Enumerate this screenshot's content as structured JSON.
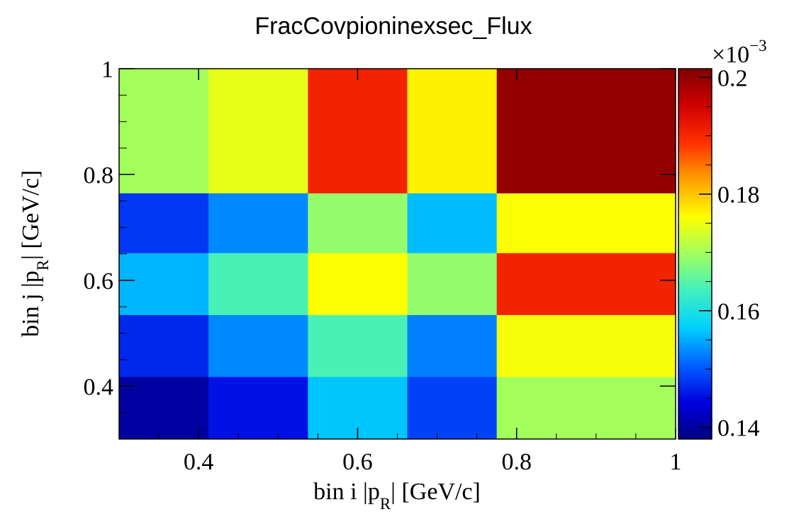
{
  "chart_data": {
    "type": "heatmap",
    "title": "FracCovpioninexsec_Flux",
    "xlabel": {
      "prefix": "bin i |",
      "vec": "p",
      "sub": "R",
      "suffix": "| [GeV/c]"
    },
    "ylabel": {
      "prefix": "bin j |",
      "vec": "p",
      "sub": "R",
      "suffix": "| [GeV/c]"
    },
    "xlim": [
      0.3,
      1.0
    ],
    "ylim": [
      0.3,
      1.0
    ],
    "x_ticks": [
      0.4,
      0.6,
      0.8,
      1
    ],
    "x_tick_labels": [
      "0.4",
      "0.6",
      "0.8",
      "1"
    ],
    "y_ticks": [
      0.4,
      0.6,
      0.8,
      1
    ],
    "y_tick_labels": [
      "0.4",
      "0.6",
      "0.8",
      "1"
    ],
    "x_bin_edges": [
      0.3,
      0.4125,
      0.5375,
      0.6625,
      0.775,
      1.0
    ],
    "y_bin_edges": [
      0.3,
      0.418,
      0.535,
      0.652,
      0.765,
      1.0
    ],
    "z_values": [
      [
        0.1402,
        0.1455,
        0.1565,
        0.1488,
        0.17
      ],
      [
        0.147,
        0.153,
        0.164,
        0.1525,
        0.1755
      ],
      [
        0.1555,
        0.164,
        0.176,
        0.169,
        0.1905
      ],
      [
        0.148,
        0.153,
        0.169,
        0.156,
        0.176
      ],
      [
        0.17,
        0.1745,
        0.1905,
        0.177,
        0.2
      ]
    ],
    "z_multiplier_label": "×10",
    "z_multiplier_exponent": "−3",
    "zlim": [
      0.138,
      0.2015
    ],
    "z_ticks": [
      0.14,
      0.16,
      0.18,
      0.2
    ],
    "z_tick_labels": [
      "0.14",
      "0.16",
      "0.18",
      "0.2"
    ],
    "colormap": [
      "#000080",
      "#0000e0",
      "#0060ff",
      "#00d0ff",
      "#40f0c0",
      "#a0ff60",
      "#ffff00",
      "#ffa000",
      "#ff3000",
      "#d00000",
      "#800000"
    ],
    "grid": false
  }
}
